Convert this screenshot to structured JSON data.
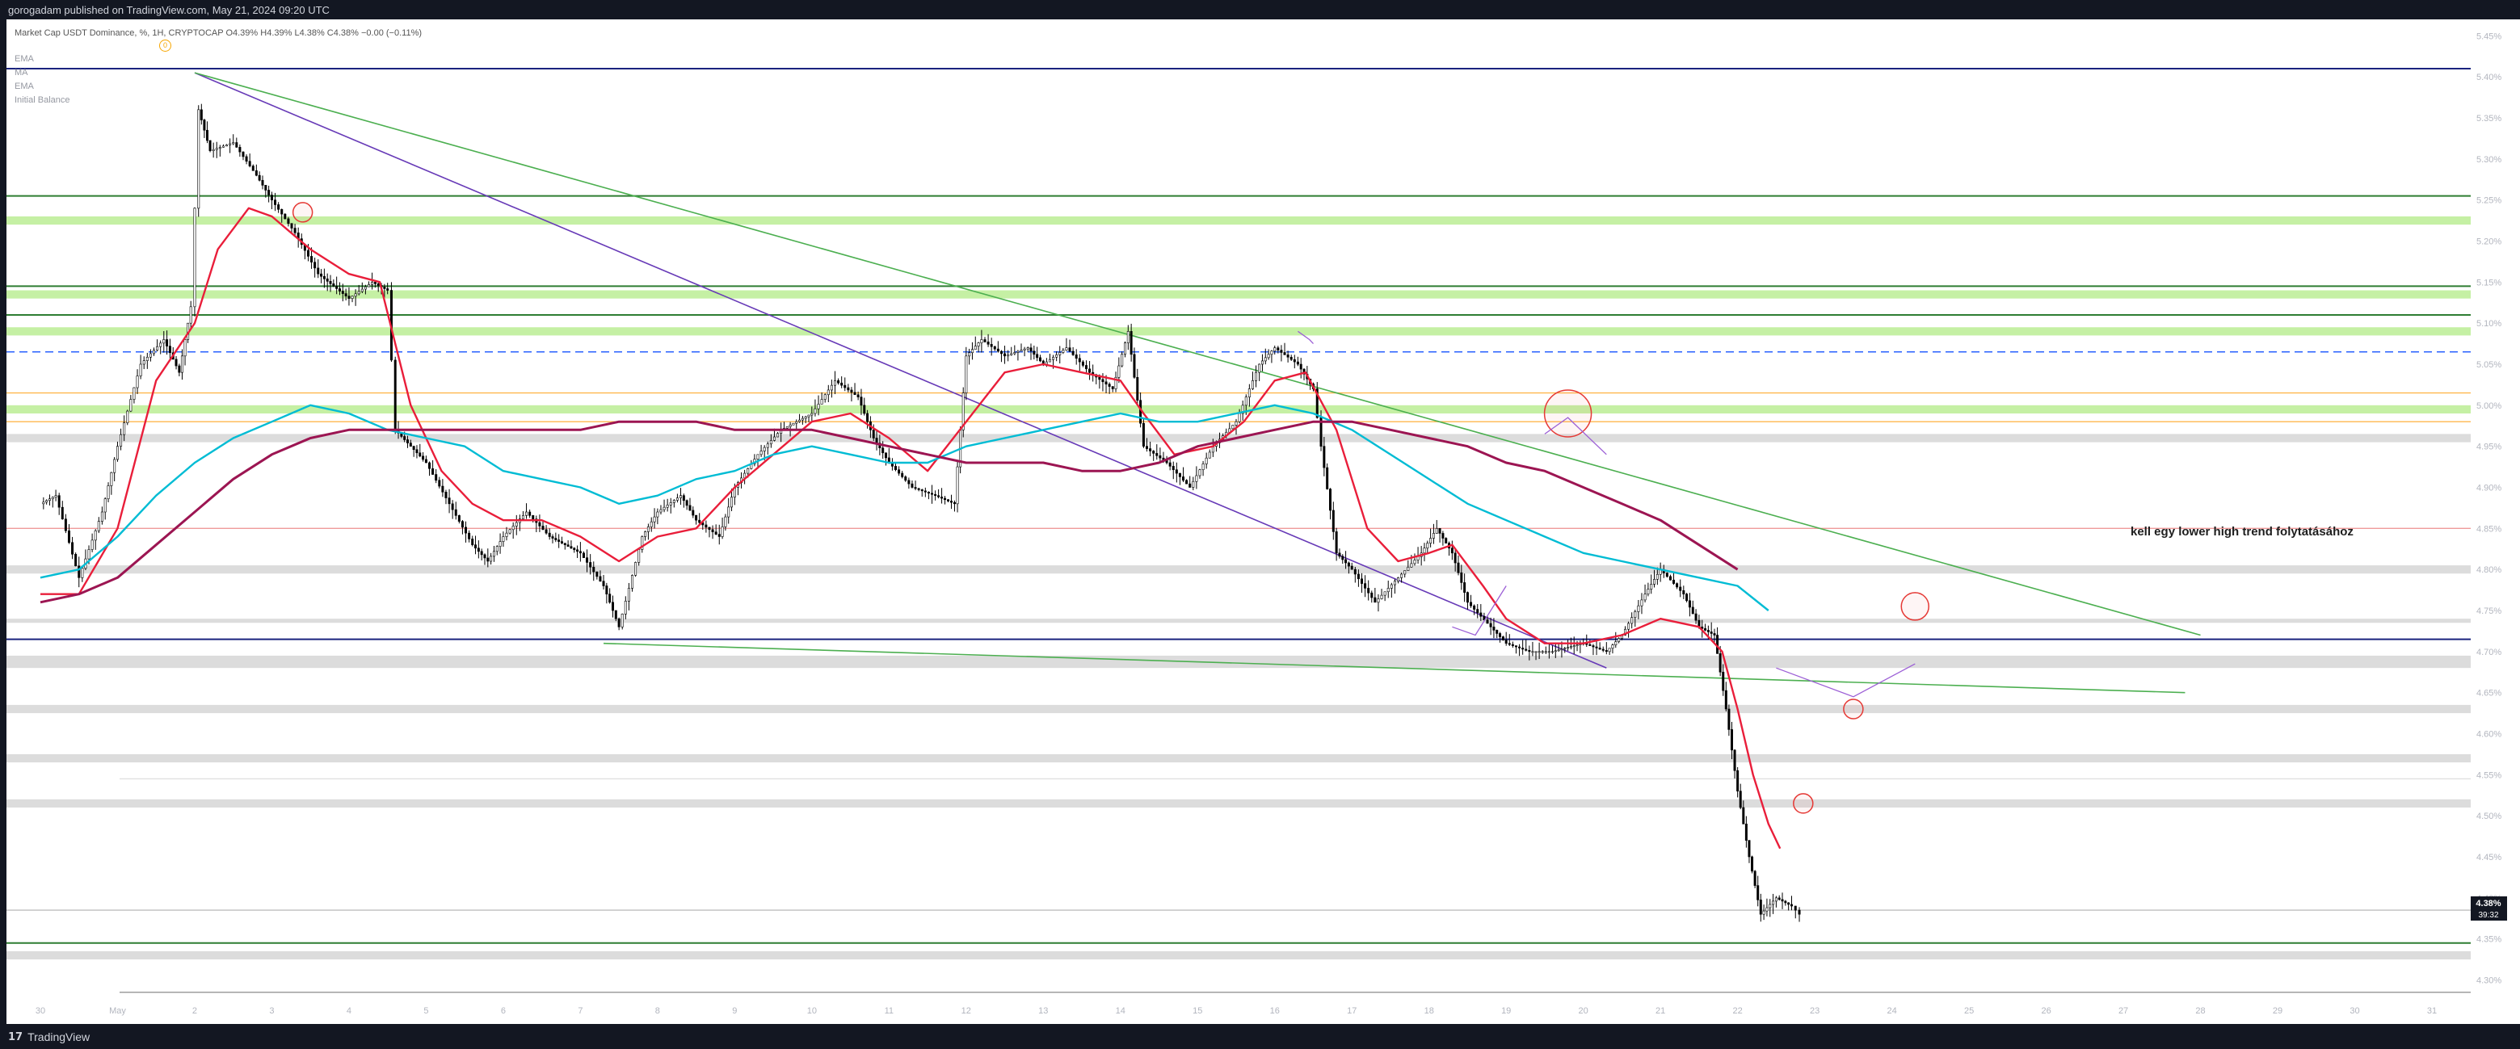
{
  "header": {
    "published_line": "gorogadam published on TradingView.com, May 21, 2024 09:20 UTC"
  },
  "legend": {
    "symbol": "Market Cap USDT Dominance, %, 1H, CRYPTOCAP",
    "ohlc": "O4.39%  H4.39%  L4.38%  C4.38%  −0.00 (−0.11%)",
    "indicators": [
      "EMA",
      "MA",
      "EMA",
      "Initial Balance"
    ],
    "badge": "0"
  },
  "footer": {
    "brand": "TradingView",
    "logo": "tradingview-logo"
  },
  "price_tag": {
    "value": "4.38%",
    "countdown": "39:32"
  },
  "annotation": {
    "text": "kell egy lower high trend folytatásához"
  },
  "colors": {
    "ema_fast": "#e91e3a",
    "ma": "#00bcd4",
    "ema_slow": "#9c1552",
    "trendline_green": "#4caf50",
    "trendline_purple": "#673ab7",
    "level_blue": "#1a237e",
    "zone_green": "#c5f0a4",
    "zone_grey": "#dcdcdc"
  },
  "chart_data": {
    "type": "candlestick",
    "y_axis": {
      "ticks": [
        "5.45%",
        "5.40%",
        "5.35%",
        "5.30%",
        "5.25%",
        "5.20%",
        "5.15%",
        "5.10%",
        "5.05%",
        "5.00%",
        "4.95%",
        "4.90%",
        "4.85%",
        "4.80%",
        "4.75%",
        "4.70%",
        "4.65%",
        "4.60%",
        "4.55%",
        "4.50%",
        "4.45%",
        "4.40%",
        "4.35%",
        "4.30%"
      ],
      "range": [
        4.27,
        5.47
      ]
    },
    "x_axis": {
      "ticks": [
        "30",
        "May",
        "2",
        "3",
        "4",
        "5",
        "6",
        "7",
        "8",
        "9",
        "10",
        "11",
        "12",
        "13",
        "14",
        "15",
        "16",
        "17",
        "18",
        "19",
        "20",
        "21",
        "22",
        "23",
        "24",
        "25",
        "26",
        "27",
        "28",
        "29",
        "30",
        "31"
      ]
    },
    "price_path": [
      [
        30.0,
        4.88
      ],
      [
        30.2,
        4.89
      ],
      [
        30.5,
        4.79
      ],
      [
        30.8,
        4.87
      ],
      [
        31.0,
        4.95
      ],
      [
        31.3,
        5.05
      ],
      [
        31.6,
        5.08
      ],
      [
        31.8,
        5.04
      ],
      [
        31.95,
        5.12
      ],
      [
        32.05,
        5.36
      ],
      [
        32.2,
        5.31
      ],
      [
        32.5,
        5.32
      ],
      [
        32.8,
        5.28
      ],
      [
        33.0,
        5.25
      ],
      [
        33.3,
        5.21
      ],
      [
        33.6,
        5.16
      ],
      [
        34.0,
        5.13
      ],
      [
        34.3,
        5.15
      ],
      [
        34.5,
        5.14
      ],
      [
        34.6,
        4.97
      ],
      [
        35.0,
        4.93
      ],
      [
        35.3,
        4.88
      ],
      [
        35.6,
        4.83
      ],
      [
        35.8,
        4.81
      ],
      [
        36.0,
        4.84
      ],
      [
        36.3,
        4.87
      ],
      [
        36.6,
        4.84
      ],
      [
        37.0,
        4.82
      ],
      [
        37.3,
        4.78
      ],
      [
        37.5,
        4.73
      ],
      [
        37.8,
        4.84
      ],
      [
        38.0,
        4.87
      ],
      [
        38.3,
        4.89
      ],
      [
        38.5,
        4.86
      ],
      [
        38.8,
        4.84
      ],
      [
        39.0,
        4.9
      ],
      [
        39.3,
        4.94
      ],
      [
        39.6,
        4.97
      ],
      [
        40.0,
        4.99
      ],
      [
        40.3,
        5.03
      ],
      [
        40.6,
        5.01
      ],
      [
        40.8,
        4.96
      ],
      [
        41.0,
        4.93
      ],
      [
        41.3,
        4.9
      ],
      [
        41.6,
        4.89
      ],
      [
        41.85,
        4.88
      ],
      [
        42.0,
        5.06
      ],
      [
        42.2,
        5.08
      ],
      [
        42.5,
        5.06
      ],
      [
        42.8,
        5.07
      ],
      [
        43.0,
        5.05
      ],
      [
        43.3,
        5.07
      ],
      [
        43.6,
        5.04
      ],
      [
        43.9,
        5.02
      ],
      [
        44.1,
        5.09
      ],
      [
        44.3,
        4.95
      ],
      [
        44.6,
        4.93
      ],
      [
        44.9,
        4.9
      ],
      [
        45.2,
        4.95
      ],
      [
        45.5,
        4.98
      ],
      [
        45.8,
        5.05
      ],
      [
        46.0,
        5.07
      ],
      [
        46.3,
        5.05
      ],
      [
        46.5,
        5.02
      ],
      [
        46.6,
        4.95
      ],
      [
        46.8,
        4.82
      ],
      [
        47.0,
        4.8
      ],
      [
        47.3,
        4.76
      ],
      [
        47.6,
        4.79
      ],
      [
        47.9,
        4.82
      ],
      [
        48.1,
        4.85
      ],
      [
        48.3,
        4.82
      ],
      [
        48.5,
        4.76
      ],
      [
        48.8,
        4.73
      ],
      [
        49.0,
        4.71
      ],
      [
        49.3,
        4.7
      ],
      [
        49.6,
        4.7
      ],
      [
        50.0,
        4.71
      ],
      [
        50.3,
        4.7
      ],
      [
        50.5,
        4.72
      ],
      [
        50.8,
        4.77
      ],
      [
        51.0,
        4.8
      ],
      [
        51.3,
        4.77
      ],
      [
        51.5,
        4.73
      ],
      [
        51.7,
        4.72
      ],
      [
        51.85,
        4.63
      ],
      [
        52.0,
        4.53
      ],
      [
        52.15,
        4.45
      ],
      [
        52.3,
        4.38
      ],
      [
        52.5,
        4.4
      ],
      [
        52.7,
        4.39
      ],
      [
        52.8,
        4.38
      ]
    ],
    "series": [
      {
        "name": "EMA",
        "points": [
          [
            30.0,
            4.77
          ],
          [
            30.5,
            4.77
          ],
          [
            31.0,
            4.85
          ],
          [
            31.5,
            5.03
          ],
          [
            32.0,
            5.1
          ],
          [
            32.3,
            5.19
          ],
          [
            32.7,
            5.24
          ],
          [
            33.0,
            5.23
          ],
          [
            33.5,
            5.19
          ],
          [
            34.0,
            5.16
          ],
          [
            34.4,
            5.15
          ],
          [
            34.8,
            5.0
          ],
          [
            35.2,
            4.92
          ],
          [
            35.6,
            4.88
          ],
          [
            36.0,
            4.86
          ],
          [
            36.5,
            4.86
          ],
          [
            37.0,
            4.84
          ],
          [
            37.5,
            4.81
          ],
          [
            38.0,
            4.84
          ],
          [
            38.5,
            4.85
          ],
          [
            39.0,
            4.9
          ],
          [
            39.5,
            4.94
          ],
          [
            40.0,
            4.98
          ],
          [
            40.5,
            4.99
          ],
          [
            41.0,
            4.96
          ],
          [
            41.5,
            4.92
          ],
          [
            42.0,
            4.98
          ],
          [
            42.5,
            5.04
          ],
          [
            43.0,
            5.05
          ],
          [
            43.5,
            5.04
          ],
          [
            44.0,
            5.03
          ],
          [
            44.3,
            4.99
          ],
          [
            44.7,
            4.94
          ],
          [
            45.2,
            4.95
          ],
          [
            45.6,
            4.98
          ],
          [
            46.0,
            5.03
          ],
          [
            46.4,
            5.04
          ],
          [
            46.8,
            4.97
          ],
          [
            47.2,
            4.85
          ],
          [
            47.6,
            4.81
          ],
          [
            48.0,
            4.82
          ],
          [
            48.3,
            4.83
          ],
          [
            48.7,
            4.78
          ],
          [
            49.0,
            4.74
          ],
          [
            49.5,
            4.71
          ],
          [
            50.0,
            4.71
          ],
          [
            50.5,
            4.72
          ],
          [
            51.0,
            4.74
          ],
          [
            51.5,
            4.73
          ],
          [
            51.8,
            4.7
          ],
          [
            52.0,
            4.63
          ],
          [
            52.2,
            4.55
          ],
          [
            52.4,
            4.49
          ],
          [
            52.55,
            4.46
          ]
        ]
      },
      {
        "name": "MA",
        "points": [
          [
            30.0,
            4.79
          ],
          [
            30.5,
            4.8
          ],
          [
            31.0,
            4.84
          ],
          [
            31.5,
            4.89
          ],
          [
            32.0,
            4.93
          ],
          [
            32.5,
            4.96
          ],
          [
            33.0,
            4.98
          ],
          [
            33.5,
            5.0
          ],
          [
            34.0,
            4.99
          ],
          [
            34.5,
            4.97
          ],
          [
            35.0,
            4.96
          ],
          [
            35.5,
            4.95
          ],
          [
            36.0,
            4.92
          ],
          [
            36.5,
            4.91
          ],
          [
            37.0,
            4.9
          ],
          [
            37.5,
            4.88
          ],
          [
            38.0,
            4.89
          ],
          [
            38.5,
            4.91
          ],
          [
            39.0,
            4.92
          ],
          [
            39.5,
            4.94
          ],
          [
            40.0,
            4.95
          ],
          [
            40.5,
            4.94
          ],
          [
            41.0,
            4.93
          ],
          [
            41.5,
            4.93
          ],
          [
            42.0,
            4.95
          ],
          [
            42.5,
            4.96
          ],
          [
            43.0,
            4.97
          ],
          [
            43.5,
            4.98
          ],
          [
            44.0,
            4.99
          ],
          [
            44.5,
            4.98
          ],
          [
            45.0,
            4.98
          ],
          [
            45.5,
            4.99
          ],
          [
            46.0,
            5.0
          ],
          [
            46.5,
            4.99
          ],
          [
            47.0,
            4.97
          ],
          [
            47.5,
            4.94
          ],
          [
            48.0,
            4.91
          ],
          [
            48.5,
            4.88
          ],
          [
            49.0,
            4.86
          ],
          [
            49.5,
            4.84
          ],
          [
            50.0,
            4.82
          ],
          [
            50.5,
            4.81
          ],
          [
            51.0,
            4.8
          ],
          [
            51.5,
            4.79
          ],
          [
            52.0,
            4.78
          ],
          [
            52.4,
            4.75
          ]
        ]
      },
      {
        "name": "EMA",
        "points": [
          [
            30.0,
            4.76
          ],
          [
            30.5,
            4.77
          ],
          [
            31.0,
            4.79
          ],
          [
            31.5,
            4.83
          ],
          [
            32.0,
            4.87
          ],
          [
            32.5,
            4.91
          ],
          [
            33.0,
            4.94
          ],
          [
            33.5,
            4.96
          ],
          [
            34.0,
            4.97
          ],
          [
            34.5,
            4.97
          ],
          [
            35.0,
            4.97
          ],
          [
            35.5,
            4.97
          ],
          [
            36.0,
            4.97
          ],
          [
            36.5,
            4.97
          ],
          [
            37.0,
            4.97
          ],
          [
            37.5,
            4.98
          ],
          [
            38.0,
            4.98
          ],
          [
            38.5,
            4.98
          ],
          [
            39.0,
            4.97
          ],
          [
            39.5,
            4.97
          ],
          [
            40.0,
            4.97
          ],
          [
            40.5,
            4.96
          ],
          [
            41.0,
            4.95
          ],
          [
            41.5,
            4.94
          ],
          [
            42.0,
            4.93
          ],
          [
            42.5,
            4.93
          ],
          [
            43.0,
            4.93
          ],
          [
            43.5,
            4.92
          ],
          [
            44.0,
            4.92
          ],
          [
            44.5,
            4.93
          ],
          [
            45.0,
            4.95
          ],
          [
            45.5,
            4.96
          ],
          [
            46.0,
            4.97
          ],
          [
            46.5,
            4.98
          ],
          [
            47.0,
            4.98
          ],
          [
            47.5,
            4.97
          ],
          [
            48.0,
            4.96
          ],
          [
            48.5,
            4.95
          ],
          [
            49.0,
            4.93
          ],
          [
            49.5,
            4.92
          ],
          [
            50.0,
            4.9
          ],
          [
            50.5,
            4.88
          ],
          [
            51.0,
            4.86
          ],
          [
            51.5,
            4.83
          ],
          [
            52.0,
            4.8
          ]
        ]
      }
    ],
    "horizontal_levels": [
      {
        "kind": "line",
        "price": 5.41,
        "color": "#1a237e"
      },
      {
        "kind": "line",
        "price": 5.255,
        "color": "#2e7d32"
      },
      {
        "kind": "line",
        "price": 5.145,
        "color": "#2e7d32"
      },
      {
        "kind": "line",
        "price": 5.11,
        "color": "#2e7d32"
      },
      {
        "kind": "dashed",
        "price": 5.065,
        "color": "#2962ff"
      },
      {
        "kind": "line",
        "price": 5.015,
        "color": "#ffb74d"
      },
      {
        "kind": "line",
        "price": 4.98,
        "color": "#ffb74d"
      },
      {
        "kind": "line",
        "price": 4.85,
        "color": "#ef9a9a"
      },
      {
        "kind": "line",
        "price": 4.715,
        "color": "#1a237e"
      },
      {
        "kind": "line",
        "price": 4.545,
        "color": "#e0e0e0"
      },
      {
        "kind": "line",
        "price": 4.385,
        "color": "#bdbdbd"
      },
      {
        "kind": "line",
        "price": 4.345,
        "color": "#2e7d32"
      },
      {
        "kind": "line",
        "price": 4.285,
        "color": "#9e9e9e"
      }
    ],
    "zones": [
      {
        "color": "#c5f0a4",
        "from": 5.22,
        "to": 5.23
      },
      {
        "color": "#c5f0a4",
        "from": 5.13,
        "to": 5.14
      },
      {
        "color": "#c5f0a4",
        "from": 5.085,
        "to": 5.095
      },
      {
        "color": "#c5f0a4",
        "from": 4.99,
        "to": 5.0
      },
      {
        "color": "#dcdcdc",
        "from": 4.955,
        "to": 4.965
      },
      {
        "color": "#dcdcdc",
        "from": 4.795,
        "to": 4.805
      },
      {
        "color": "#dcdcdc",
        "from": 4.735,
        "to": 4.74
      },
      {
        "color": "#dcdcdc",
        "from": 4.68,
        "to": 4.695
      },
      {
        "color": "#dcdcdc",
        "from": 4.625,
        "to": 4.635
      },
      {
        "color": "#dcdcdc",
        "from": 4.565,
        "to": 4.575
      },
      {
        "color": "#dcdcdc",
        "from": 4.51,
        "to": 4.52
      },
      {
        "color": "#dcdcdc",
        "from": 4.325,
        "to": 4.335
      }
    ],
    "trendlines": [
      {
        "color": "#673ab7",
        "points": [
          [
            32.0,
            5.405
          ],
          [
            50.3,
            4.68
          ]
        ]
      },
      {
        "color": "#4caf50",
        "points": [
          [
            32.0,
            5.405
          ],
          [
            58.0,
            4.72
          ]
        ]
      },
      {
        "color": "#4caf50",
        "points": [
          [
            37.3,
            4.71
          ],
          [
            57.8,
            4.65
          ]
        ]
      }
    ],
    "circles": [
      {
        "x": 33.4,
        "price": 5.235,
        "size": "small"
      },
      {
        "x": 49.8,
        "price": 4.99,
        "size": "large"
      },
      {
        "x": 54.3,
        "price": 4.755,
        "size": "medium"
      },
      {
        "x": 53.5,
        "price": 4.63,
        "size": "small"
      },
      {
        "x": 52.85,
        "price": 4.515,
        "size": "small"
      }
    ]
  }
}
